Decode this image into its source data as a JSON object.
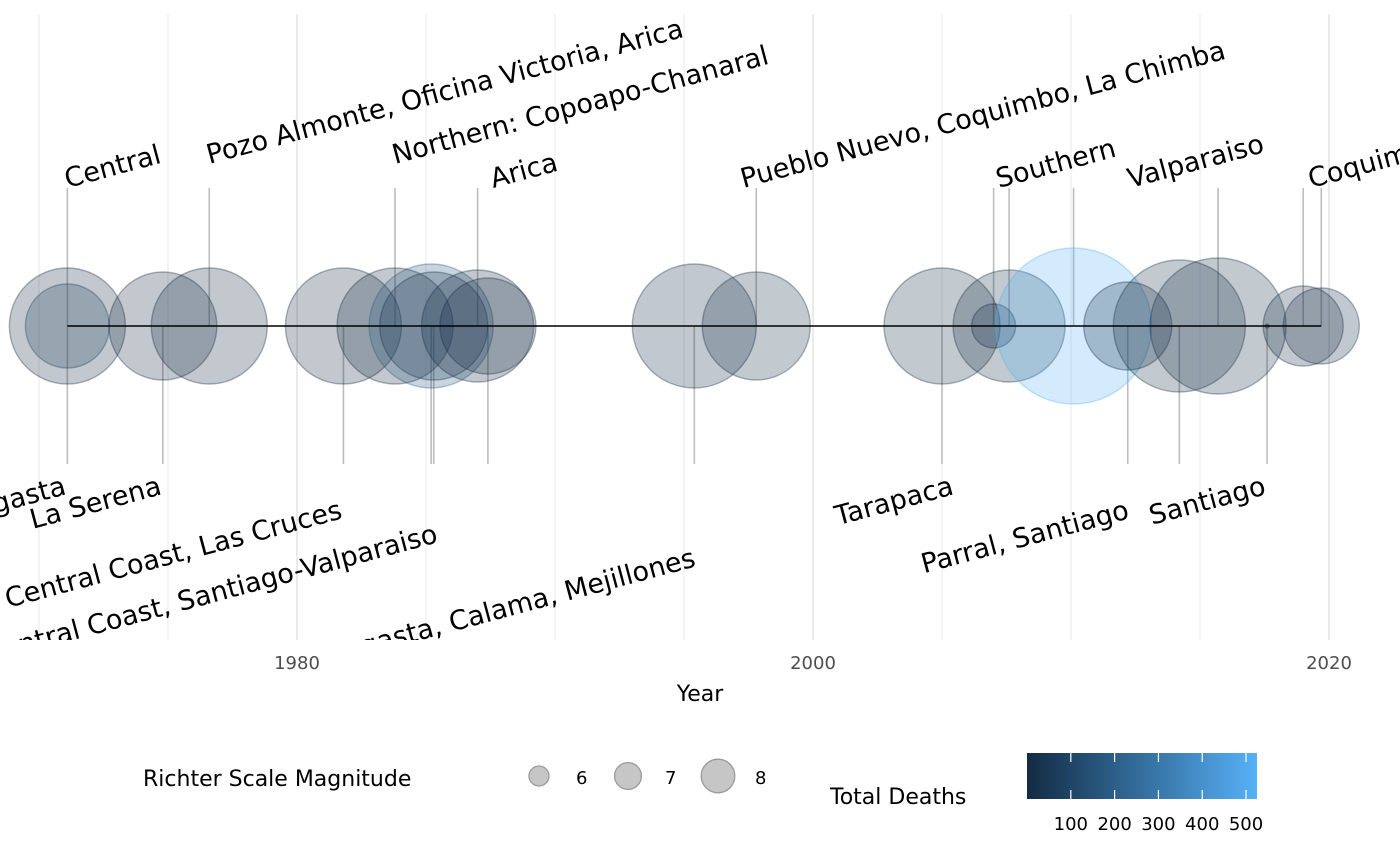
{
  "chart_data": {
    "type": "scatter",
    "subtype": "timeline",
    "xlabel": "Year",
    "x_ticks": [
      1980,
      2000,
      2020
    ],
    "xlim": [
      1967,
      2021.5
    ],
    "size_legend": {
      "title": "Richter Scale Magnitude",
      "values": [
        6,
        7,
        8
      ]
    },
    "color_legend": {
      "title": "Total Deaths",
      "ticks": [
        100,
        200,
        300,
        400,
        500
      ],
      "tick_labels": [
        "100",
        "200",
        "300",
        "400",
        "500"
      ],
      "range": [
        0,
        525
      ],
      "low_color": "#132B43",
      "high_color": "#56B1F7"
    },
    "points": [
      {
        "year": 1971.1,
        "magnitude": 7.8,
        "deaths": 0,
        "label": "Central",
        "side": "top",
        "tier": 0
      },
      {
        "year": 1971.1,
        "magnitude": 7.0,
        "deaths": 90,
        "label": "Antofagasta",
        "side": "bottom",
        "tier": 0
      },
      {
        "year": 1974.8,
        "magnitude": 7.6,
        "deaths": 0,
        "label": "La Serena",
        "side": "bottom",
        "tier": 0
      },
      {
        "year": 1976.6,
        "magnitude": 7.8,
        "deaths": 0,
        "label": "Pozo Almonte, Oficina Victoria, Arica",
        "side": "top",
        "tier": 1
      },
      {
        "year": 1981.8,
        "magnitude": 7.8,
        "deaths": 0,
        "label": "Central Coast, Las Cruces",
        "side": "bottom",
        "tier": 1
      },
      {
        "year": 1983.8,
        "magnitude": 7.8,
        "deaths": 0,
        "label": "Northern:  Copoapo-Chanaral",
        "side": "top",
        "tier": 0
      },
      {
        "year": 1985.2,
        "magnitude": 8.0,
        "deaths": 177,
        "label": "Central Coast, Santiago-Valparaiso",
        "side": "bottom",
        "tier": 2
      },
      {
        "year": 1985.3,
        "magnitude": 7.6,
        "deaths": 40,
        "label": "",
        "side": "bottom",
        "tier": 2
      },
      {
        "year": 1987.0,
        "magnitude": 7.7,
        "deaths": 0,
        "label": "Arica",
        "side": "top",
        "tier": 0
      },
      {
        "year": 1987.4,
        "magnitude": 7.3,
        "deaths": 2,
        "label": "Antofagasta, Calama, Mejillones",
        "side": "bottom",
        "tier": 3
      },
      {
        "year": 1995.4,
        "magnitude": 8.0,
        "deaths": 3,
        "label": "Antofagasta, Calama, Mejillones",
        "side": "bottom",
        "tier": 3
      },
      {
        "year": 1997.8,
        "magnitude": 7.6,
        "deaths": 8,
        "label": "Pueblo Nuevo, Coquimbo, La Chimba",
        "side": "top",
        "tier": 1
      },
      {
        "year": 2005.0,
        "magnitude": 7.8,
        "deaths": 11,
        "label": "Tarapaca",
        "side": "bottom",
        "tier": 0
      },
      {
        "year": 2007.0,
        "magnitude": 6.0,
        "deaths": 2,
        "label": "",
        "side": "top",
        "tier": 0
      },
      {
        "year": 2007.6,
        "magnitude": 7.7,
        "deaths": 10,
        "label": "Southern",
        "side": "top",
        "tier": 0
      },
      {
        "year": 2010.1,
        "magnitude": 8.8,
        "deaths": 521,
        "label": "",
        "side": "top",
        "tier": 0
      },
      {
        "year": 2012.2,
        "magnitude": 7.1,
        "deaths": 0,
        "label": "Parral, Santiago",
        "side": "bottom",
        "tier": 1
      },
      {
        "year": 2014.2,
        "magnitude": 8.2,
        "deaths": 6,
        "label": "",
        "side": "bottom",
        "tier": 1
      },
      {
        "year": 2015.7,
        "magnitude": 8.3,
        "deaths": 13,
        "label": "Valparaiso",
        "side": "top",
        "tier": 0
      },
      {
        "year": 2017.6,
        "magnitude": 5.0,
        "deaths": 1,
        "label": "Santiago",
        "side": "bottom",
        "tier": 0
      },
      {
        "year": 2019.0,
        "magnitude": 6.9,
        "deaths": 0,
        "label": "Coquimbo",
        "side": "top",
        "tier": 0
      },
      {
        "year": 2019.7,
        "magnitude": 6.8,
        "deaths": 2,
        "label": "",
        "side": "top",
        "tier": 0
      }
    ],
    "labels": [
      {
        "text": "Central",
        "side": "top",
        "tier": 0,
        "year": 1971.1
      },
      {
        "text": "Pozo Almonte, Oficina Victoria, Arica",
        "side": "top",
        "tier": 1,
        "year": 1976.6
      },
      {
        "text": "Northern:  Copoapo-Chanaral",
        "side": "top",
        "tier": 1,
        "year": 1983.8
      },
      {
        "text": "Arica",
        "side": "top",
        "tier": 0,
        "year": 1987.6
      },
      {
        "text": "Pueblo Nuevo, Coquimbo, La Chimba",
        "side": "top",
        "tier": 0,
        "year": 1997.3
      },
      {
        "text": "Southern",
        "side": "top",
        "tier": 0,
        "year": 2007.2
      },
      {
        "text": "Valparaiso",
        "side": "top",
        "tier": 0,
        "year": 2012.3
      },
      {
        "text": "Coquimbo",
        "side": "top",
        "tier": 0,
        "year": 2019.3
      },
      {
        "text": "Antofagasta",
        "side": "bottom",
        "tier": 0,
        "year": 1971.1
      },
      {
        "text": "La Serena",
        "side": "bottom",
        "tier": 0,
        "year": 1974.8
      },
      {
        "text": "Central Coast, Las Cruces",
        "side": "bottom",
        "tier": 1,
        "year": 1981.8
      },
      {
        "text": "Central Coast, Santiago-Valparaiso",
        "side": "bottom",
        "tier": 2,
        "year": 1985.5
      },
      {
        "text": "Antofagasta, Calama, Mejillones",
        "side": "bottom",
        "tier": 3,
        "year": 1995.5
      },
      {
        "text": "Tarapaca",
        "side": "bottom",
        "tier": 0,
        "year": 2005.5
      },
      {
        "text": "Parral, Santiago",
        "side": "bottom",
        "tier": 1,
        "year": 2012.3
      },
      {
        "text": "Santiago",
        "side": "bottom",
        "tier": 0,
        "year": 2017.6
      }
    ],
    "timeline_extent": [
      1971.1,
      2019.7
    ],
    "grid": true,
    "legend_position": "bottom"
  }
}
